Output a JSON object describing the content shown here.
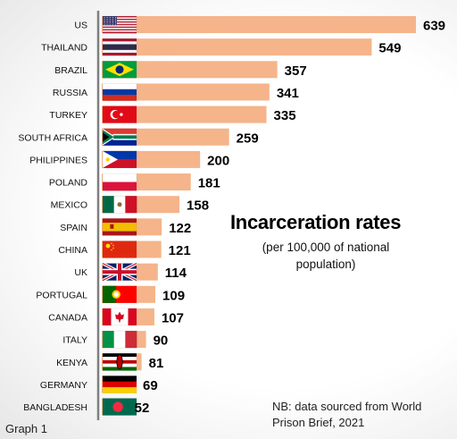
{
  "chart_data": {
    "type": "bar",
    "orientation": "horizontal",
    "title": "Incarceration rates",
    "subtitle": "(per 100,000 of national population)",
    "note": "NB: data sourced from World Prison Brief, 2021",
    "caption": "Graph 1",
    "categories": [
      "US",
      "THAILAND",
      "BRAZIL",
      "RUSSIA",
      "TURKEY",
      "SOUTH AFRICA",
      "PHILIPPINES",
      "POLAND",
      "MEXICO",
      "SPAIN",
      "CHINA",
      "UK",
      "PORTUGAL",
      "CANADA",
      "ITALY",
      "KENYA",
      "GERMANY",
      "BANGLADESH"
    ],
    "values": [
      639,
      549,
      357,
      341,
      335,
      259,
      200,
      181,
      158,
      122,
      121,
      114,
      109,
      107,
      90,
      81,
      69,
      52
    ],
    "xlim": [
      0,
      639
    ],
    "grid": false,
    "legend": "none",
    "colors": {
      "bar": "#f5b48a",
      "axis": "#7f7f7f",
      "text": "#000000"
    },
    "flag_icons": [
      "us-flag-icon",
      "thailand-flag-icon",
      "brazil-flag-icon",
      "russia-flag-icon",
      "turkey-flag-icon",
      "south-africa-flag-icon",
      "philippines-flag-icon",
      "poland-flag-icon",
      "mexico-flag-icon",
      "spain-flag-icon",
      "china-flag-icon",
      "uk-flag-icon",
      "portugal-flag-icon",
      "canada-flag-icon",
      "italy-flag-icon",
      "kenya-flag-icon",
      "germany-flag-icon",
      "bangladesh-flag-icon"
    ]
  }
}
